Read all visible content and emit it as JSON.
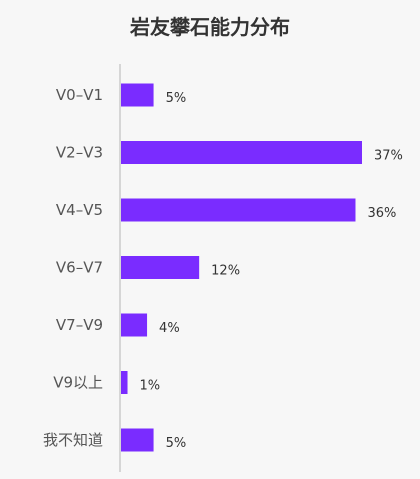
{
  "chart_data": {
    "type": "bar",
    "orientation": "horizontal",
    "title": "岩友攀石能力分布",
    "categories": [
      "V0–V1",
      "V2–V3",
      "V4–V5",
      "V6–V7",
      "V7–V9",
      "V9以上",
      "我不知道"
    ],
    "values": [
      5,
      37,
      36,
      12,
      4,
      1,
      5
    ],
    "value_labels": [
      "5%",
      "37%",
      "36%",
      "12%",
      "4%",
      "1%",
      "5%"
    ],
    "unit": "%",
    "xlim": [
      0,
      37
    ],
    "grid": false,
    "legend": "none",
    "colors": {
      "bar": "#7a2cff",
      "axis": "#cccccc",
      "background": "#f7f7f7"
    }
  }
}
